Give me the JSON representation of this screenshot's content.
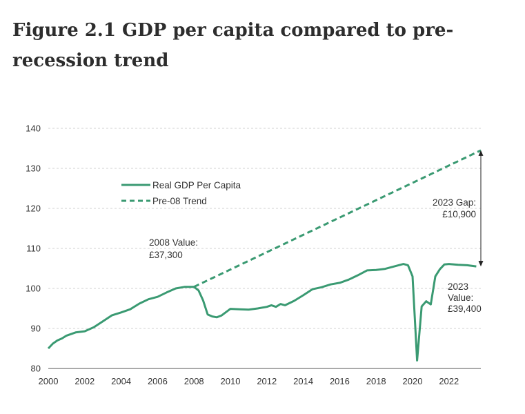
{
  "page": {
    "title_line1": "Figure 2.1 GDP per capita compared to pre-",
    "title_line2": "recession trend"
  },
  "colors": {
    "series": "#3a9a72",
    "grid": "#d0d0d0",
    "axis": "#555555",
    "arrow": "#222222"
  },
  "chart_data": {
    "type": "line",
    "title": "Figure 2.1 GDP per capita compared to pre-recession trend",
    "xlabel": "",
    "ylabel": "",
    "xlim": [
      2000,
      2023.75
    ],
    "ylim": [
      80,
      140
    ],
    "xticks": [
      2000,
      2002,
      2004,
      2006,
      2008,
      2010,
      2012,
      2014,
      2016,
      2018,
      2020,
      2022
    ],
    "yticks": [
      80,
      90,
      100,
      110,
      120,
      130,
      140
    ],
    "legend": {
      "placement": "top-left",
      "items": [
        {
          "label": "Real GDP Per Capita",
          "style": "solid"
        },
        {
          "label": "Pre-08 Trend",
          "style": "dashed"
        }
      ]
    },
    "series": [
      {
        "name": "Real GDP Per Capita",
        "style": "solid",
        "x": [
          2000,
          2000.25,
          2000.5,
          2000.75,
          2001,
          2001.5,
          2002,
          2002.5,
          2003,
          2003.5,
          2004,
          2004.5,
          2005,
          2005.5,
          2006,
          2006.5,
          2007,
          2007.5,
          2008,
          2008.25,
          2008.5,
          2008.75,
          2009,
          2009.25,
          2009.5,
          2010,
          2010.5,
          2011,
          2011.5,
          2012,
          2012.25,
          2012.5,
          2012.75,
          2013,
          2013.5,
          2014,
          2014.5,
          2015,
          2015.5,
          2016,
          2016.5,
          2017,
          2017.5,
          2018,
          2018.5,
          2019,
          2019.5,
          2019.75,
          2020,
          2020.25,
          2020.5,
          2020.75,
          2021,
          2021.25,
          2021.5,
          2021.75,
          2022,
          2022.5,
          2023,
          2023.5
        ],
        "values": [
          85,
          86.2,
          87,
          87.5,
          88.2,
          89,
          89.3,
          90.3,
          91.8,
          93.3,
          94,
          94.8,
          96.2,
          97.3,
          97.9,
          99,
          100,
          100.4,
          100.4,
          99.5,
          97,
          93.5,
          93,
          92.8,
          93.2,
          94.9,
          94.8,
          94.7,
          95,
          95.4,
          95.8,
          95.4,
          96.1,
          95.8,
          96.9,
          98.3,
          99.8,
          100.3,
          101,
          101.4,
          102.2,
          103.3,
          104.5,
          104.6,
          104.9,
          105.5,
          106.1,
          105.8,
          103,
          82,
          95.5,
          96.8,
          96,
          103,
          104.8,
          106,
          106.1,
          105.9,
          105.8,
          105.5
        ]
      },
      {
        "name": "Pre-08 Trend",
        "style": "dashed",
        "x": [
          2008,
          2023.75
        ],
        "values": [
          100.4,
          134.5
        ]
      }
    ],
    "annotations": [
      {
        "lines": [
          "2008 Value:",
          "£37,300"
        ]
      },
      {
        "lines": [
          "2023 Gap:",
          "£10,900"
        ]
      },
      {
        "lines": [
          "2023",
          "Value:",
          "£39,400"
        ]
      }
    ],
    "gap_arrow": {
      "x": 2023.75,
      "from": 105.5,
      "to": 134.5
    }
  }
}
